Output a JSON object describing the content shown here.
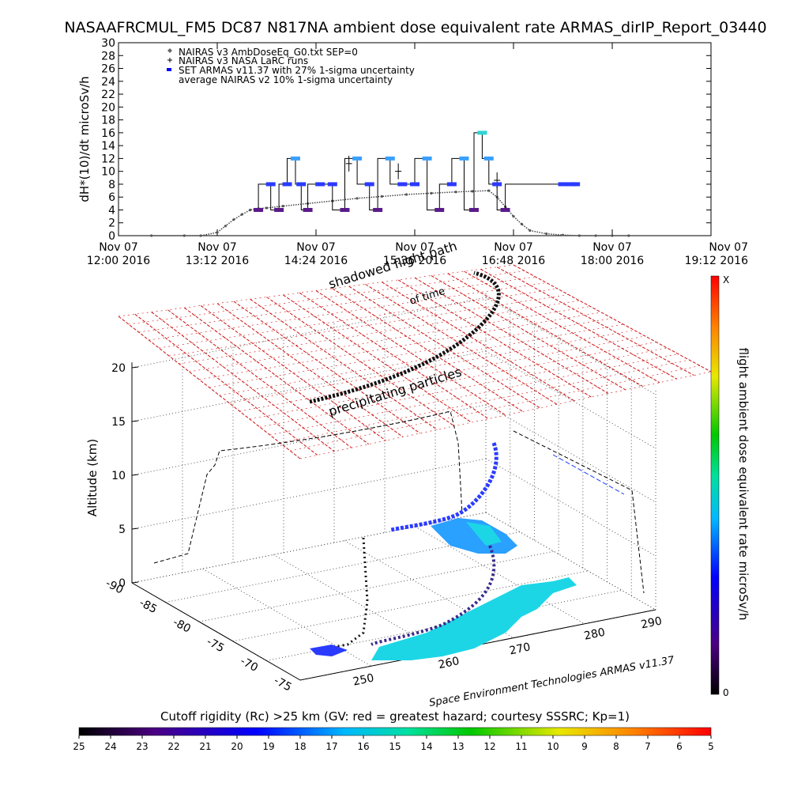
{
  "title": "NASAAFRCMUL_FM5 DC87 N817NA ambient dose equivalent rate ARMAS_dirIP_Report_03440",
  "top_chart": {
    "ylabel": "dH*(10)/dt microSv/h",
    "ylim": [
      0,
      30
    ],
    "y_ticks": [
      "0",
      "2",
      "4",
      "6",
      "8",
      "10",
      "12",
      "14",
      "16",
      "18",
      "20",
      "22",
      "24",
      "26",
      "28",
      "30"
    ],
    "x_ticks": [
      {
        "l1": "Nov 07",
        "l2": "12:00 2016"
      },
      {
        "l1": "Nov 07",
        "l2": "13:12 2016"
      },
      {
        "l1": "Nov 07",
        "l2": "14:24 2016"
      },
      {
        "l1": "Nov 07",
        "l2": "15:36 2016"
      },
      {
        "l1": "Nov 07",
        "l2": "16:48 2016"
      },
      {
        "l1": "Nov 07",
        "l2": "18:00 2016"
      },
      {
        "l1": "Nov 07",
        "l2": "19:12 2016"
      }
    ],
    "legend": [
      "NAIRAS v3 AmbDoseEq_G0.txt SEP=0",
      "NAIRAS v3 NASA LaRC runs",
      "SET ARMAS v11.37 with 27% 1-sigma uncertainty",
      "average NAIRAS v2 10% 1-sigma uncertainty"
    ]
  },
  "chart_data": {
    "type": "scatter",
    "title": "NASAAFRCMUL_FM5 DC87 N817NA ambient dose equivalent rate ARMAS_dirIP_Report_03440",
    "ylabel": "dH*(10)/dt microSv/h",
    "ylim": [
      0,
      30
    ],
    "x_unit": "hours (Nov 07 2016)",
    "xlim": [
      12.0,
      19.2
    ],
    "series": [
      {
        "name": "NAIRAS v3 AmbDoseEq_G0.txt SEP=0",
        "x": [
          12.4,
          12.8,
          13.0,
          13.2,
          13.3,
          13.4,
          13.5,
          13.6,
          13.7,
          13.8,
          14.0,
          14.3,
          14.6,
          14.9,
          15.2,
          15.5,
          15.8,
          16.1,
          16.3,
          16.5,
          16.6,
          16.7,
          16.8,
          16.9,
          17.0,
          17.2,
          17.4,
          17.6,
          17.8,
          18.0,
          18.2
        ],
        "values": [
          0,
          0,
          0,
          0.5,
          1.5,
          2.5,
          3.3,
          4.0,
          4.2,
          4.3,
          4.6,
          5.0,
          5.4,
          5.8,
          6.1,
          6.4,
          6.6,
          6.8,
          6.9,
          7.0,
          6.0,
          4.5,
          3.0,
          1.8,
          0.8,
          0.3,
          0.1,
          0,
          0,
          0,
          0
        ]
      },
      {
        "name": "NAIRAS v3 NASA LaRC runs",
        "x": [
          14.8,
          15.4,
          16.6
        ],
        "values": [
          11.2,
          10.0,
          8.6
        ]
      },
      {
        "name": "SET ARMAS v11.37 with 27% 1-sigma uncertainty",
        "x": [
          13.7,
          13.85,
          13.95,
          14.05,
          14.15,
          14.22,
          14.3,
          14.45,
          14.6,
          14.75,
          14.9,
          15.05,
          15.15,
          15.3,
          15.45,
          15.6,
          15.75,
          15.9,
          16.05,
          16.2,
          16.32,
          16.42,
          16.5,
          16.6,
          16.7,
          17.4,
          17.5,
          17.55
        ],
        "values": [
          4,
          8,
          4,
          8,
          12,
          8,
          4,
          8,
          8,
          4,
          12,
          8,
          4,
          12,
          8,
          8,
          12,
          4,
          8,
          12,
          4,
          16,
          12,
          8,
          4,
          8,
          8,
          8
        ]
      }
    ],
    "colorbar_right": {
      "label": "flight ambient dose equivalent rate microSv/h",
      "min_label": "0",
      "max_label": "X"
    },
    "colorbar_bottom": {
      "label": "Cutoff rigidity (Rc) >25 km (GV: red = greatest hazard; courtesy SSSRC; Kp=1)",
      "ticks": [
        "25",
        "24",
        "23",
        "22",
        "21",
        "20",
        "19",
        "18",
        "17",
        "16",
        "15",
        "14",
        "13",
        "12",
        "11",
        "10",
        "9",
        "8",
        "7",
        "6",
        "5"
      ]
    },
    "plot3d": {
      "zlabel": "Altitude (km)",
      "z_ticks": [
        "0",
        "5",
        "10",
        "15",
        "20"
      ],
      "lat_ticks": [
        "-90",
        "-85",
        "-80",
        "-75",
        "-70",
        "-75"
      ],
      "lon_ticks": [
        "250",
        "260",
        "270",
        "280",
        "290"
      ],
      "annotations": [
        "shadowed flight path",
        "of time",
        "precipitating particles",
        "Space Environment Technologies ARMAS v11.37"
      ]
    }
  }
}
